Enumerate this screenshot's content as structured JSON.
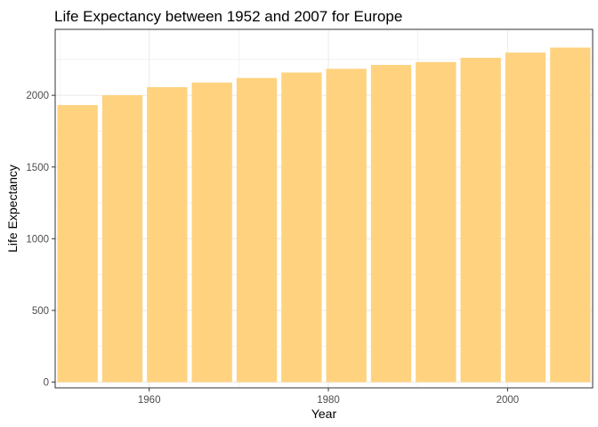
{
  "chart_data": {
    "type": "bar",
    "title": "Life Expectancy between 1952 and 2007 for Europe",
    "xlabel": "Year",
    "ylabel": "Life Expectancy",
    "x": [
      1952,
      1957,
      1962,
      1967,
      1972,
      1977,
      1982,
      1987,
      1992,
      1997,
      2002,
      2007
    ],
    "values": [
      1932,
      2001,
      2057,
      2089,
      2121,
      2159,
      2185,
      2212,
      2232,
      2262,
      2298,
      2333
    ],
    "xlim": [
      1949.5,
      2009.5
    ],
    "ylim": [
      -40,
      2460
    ],
    "xticks": [
      1960,
      1980,
      2000
    ],
    "yticks": [
      0,
      500,
      1000,
      1500,
      2000
    ],
    "xtick_labels": [
      "1960",
      "1980",
      "2000"
    ],
    "ytick_labels": [
      "0",
      "500",
      "1000",
      "1500",
      "2000"
    ],
    "bar_color": "#FFD27F",
    "grid": true,
    "legend": "none"
  }
}
